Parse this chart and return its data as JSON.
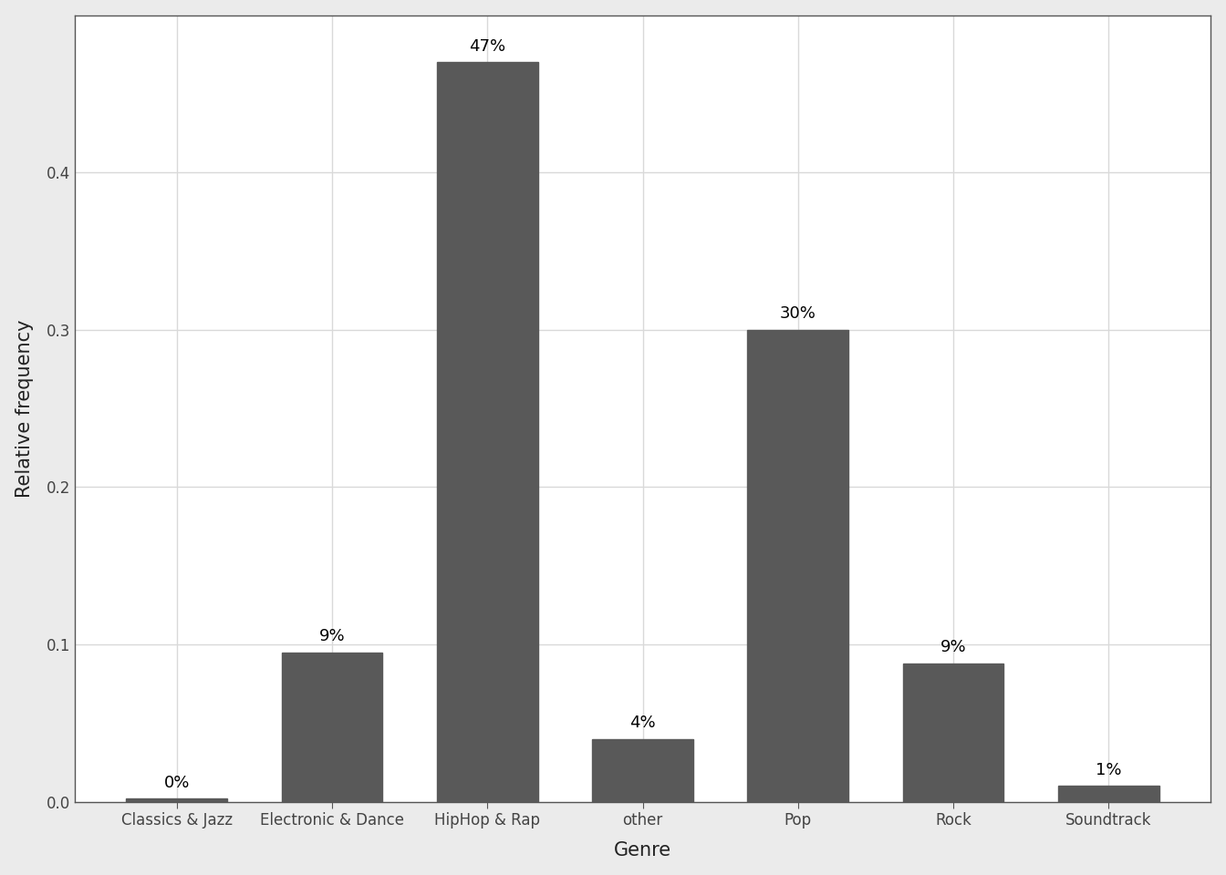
{
  "categories": [
    "Classics & Jazz",
    "Electronic & Dance",
    "HipHop & Rap",
    "other",
    "Pop",
    "Rock",
    "Soundtrack"
  ],
  "values": [
    0.002,
    0.095,
    0.47,
    0.04,
    0.3,
    0.088,
    0.01
  ],
  "labels": [
    "0%",
    "9%",
    "47%",
    "4%",
    "30%",
    "9%",
    "1%"
  ],
  "bar_color": "#595959",
  "outer_background": "#ebebeb",
  "panel_background": "#ffffff",
  "grid_color": "#d9d9d9",
  "spine_color": "#555555",
  "xlabel": "Genre",
  "ylabel": "Relative frequency",
  "ylim": [
    0,
    0.5
  ],
  "yticks": [
    0.0,
    0.1,
    0.2,
    0.3,
    0.4
  ],
  "label_fontsize": 13,
  "axis_label_fontsize": 15,
  "tick_fontsize": 12,
  "bar_width": 0.65
}
